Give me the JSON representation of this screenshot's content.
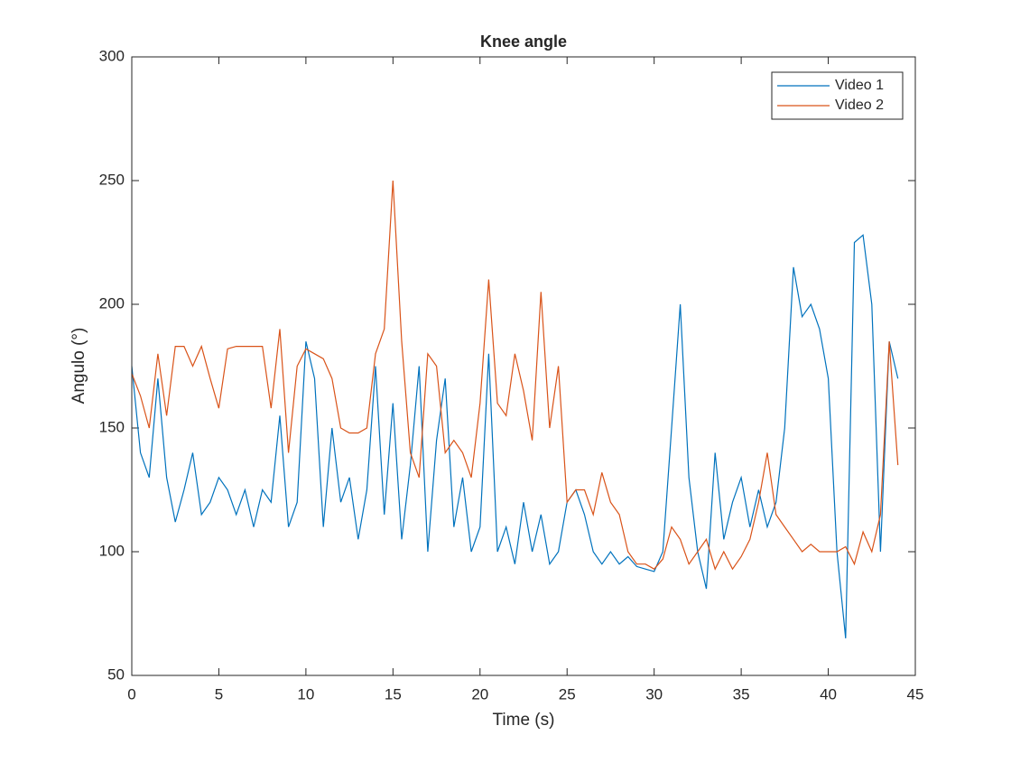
{
  "chart_data": {
    "type": "line",
    "title": "Knee angle",
    "xlabel": "Time (s)",
    "ylabel": "Angulo (°)",
    "x": [
      0,
      0.5,
      1,
      1.5,
      2,
      2.5,
      3,
      3.5,
      4,
      4.5,
      5,
      5.5,
      6,
      6.5,
      7,
      7.5,
      8,
      8.5,
      9,
      9.5,
      10,
      10.5,
      11,
      11.5,
      12,
      12.5,
      13,
      13.5,
      14,
      14.5,
      15,
      15.5,
      16,
      16.5,
      17,
      17.5,
      18,
      18.5,
      19,
      19.5,
      20,
      20.5,
      21,
      21.5,
      22,
      22.5,
      23,
      23.5,
      24,
      24.5,
      25,
      25.5,
      26,
      26.5,
      27,
      27.5,
      28,
      28.5,
      29,
      29.5,
      30,
      30.5,
      31,
      31.5,
      32,
      32.5,
      33,
      33.5,
      34,
      34.5,
      35,
      35.5,
      36,
      36.5,
      37,
      37.5,
      38,
      38.5,
      39,
      39.5,
      40,
      40.5,
      41,
      41.5,
      42,
      42.5,
      43,
      43.5,
      44
    ],
    "series": [
      {
        "name": "Video 1",
        "color": "#0072BD",
        "values": [
          175,
          140,
          130,
          170,
          130,
          112,
          125,
          140,
          115,
          120,
          130,
          125,
          115,
          125,
          110,
          125,
          120,
          155,
          110,
          120,
          185,
          170,
          110,
          150,
          120,
          130,
          105,
          125,
          175,
          115,
          160,
          105,
          135,
          175,
          100,
          145,
          170,
          110,
          130,
          100,
          110,
          180,
          100,
          110,
          95,
          120,
          100,
          115,
          95,
          100,
          120,
          125,
          115,
          100,
          95,
          100,
          95,
          98,
          94,
          93,
          92,
          100,
          150,
          200,
          130,
          100,
          85,
          140,
          105,
          120,
          130,
          110,
          125,
          110,
          120,
          150,
          215,
          195,
          200,
          190,
          170,
          100,
          65,
          225,
          228,
          200,
          100,
          185,
          170
        ]
      },
      {
        "name": "Video 2",
        "color": "#D95319",
        "values": [
          172,
          163,
          150,
          180,
          155,
          183,
          183,
          175,
          183,
          170,
          158,
          182,
          183,
          183,
          183,
          183,
          158,
          190,
          140,
          175,
          182,
          180,
          178,
          170,
          150,
          148,
          148,
          150,
          180,
          190,
          250,
          185,
          140,
          130,
          180,
          175,
          140,
          145,
          140,
          130,
          160,
          210,
          160,
          155,
          180,
          165,
          145,
          205,
          150,
          175,
          120,
          125,
          125,
          115,
          132,
          120,
          115,
          100,
          95,
          95,
          93,
          97,
          110,
          105,
          95,
          100,
          105,
          93,
          100,
          93,
          98,
          105,
          120,
          140,
          115,
          110,
          105,
          100,
          103,
          100,
          100,
          100,
          102,
          95,
          108,
          100,
          115,
          185,
          135
        ]
      }
    ],
    "xlim": [
      0,
      45
    ],
    "xticks": [
      0,
      5,
      10,
      15,
      20,
      25,
      30,
      35,
      40,
      45
    ],
    "ylim": [
      50,
      300
    ],
    "yticks": [
      50,
      100,
      150,
      200,
      250,
      300
    ],
    "grid": false,
    "legend": "northeast"
  }
}
